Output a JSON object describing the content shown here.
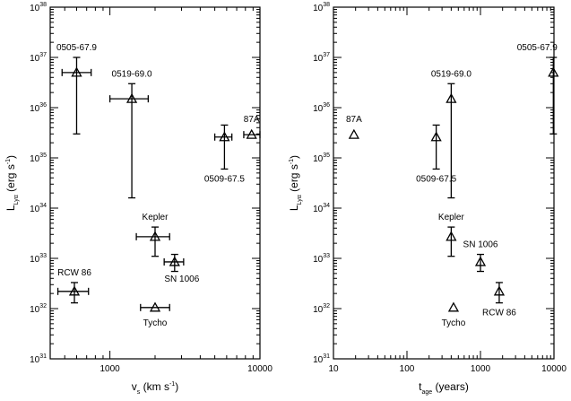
{
  "chart_data": [
    {
      "type": "scatter",
      "xscale": "log",
      "yscale": "log",
      "xlim": [
        400,
        10000
      ],
      "ylim": [
        1e+31,
        1e+38
      ],
      "xlabel": "v_s (km s^-1)",
      "ylabel": "L_Lyα (erg s^-1)",
      "x_ticklabels": [
        "1000",
        "10000"
      ],
      "y_ticklabels": [
        "10^31",
        "10^32",
        "10^33",
        "10^34",
        "10^35",
        "10^36",
        "10^37",
        "10^38"
      ],
      "points": [
        {
          "label": "0505-67.9",
          "x": 600,
          "xerr": [
            480,
            750
          ],
          "y": 5e+36,
          "yerr": [
            3e+35,
            1e+37
          ],
          "label_pos": "above"
        },
        {
          "label": "0519-69.0",
          "x": 1400,
          "xerr": [
            1000,
            1800
          ],
          "y": 1.5e+36,
          "yerr": [
            1.6e+34,
            3e+36
          ],
          "label_pos": "above"
        },
        {
          "label": "0509-67.5",
          "x": 5800,
          "xerr": [
            5000,
            6500
          ],
          "y": 2.6e+35,
          "yerr": [
            6e+34,
            4.5e+35
          ],
          "label_pos": "below"
        },
        {
          "label": "87A",
          "x": 8800,
          "xerr": [
            7800,
            10000
          ],
          "y": 2.9e+35,
          "yerr": null,
          "label_pos": "above"
        },
        {
          "label": "Kepler",
          "x": 2000,
          "xerr": [
            1500,
            2500
          ],
          "y": 2.7e+33,
          "yerr": [
            1.1e+33,
            4.2e+33
          ],
          "label_pos": "above"
        },
        {
          "label": "SN 1006",
          "x": 2700,
          "xerr": [
            2300,
            3100
          ],
          "y": 8.5e+32,
          "yerr": [
            5.5e+32,
            1.2e+33
          ],
          "label_pos": "below-right"
        },
        {
          "label": "RCW 86",
          "x": 580,
          "xerr": [
            450,
            720
          ],
          "y": 2.2e+32,
          "yerr": [
            1.3e+32,
            3.3e+32
          ],
          "label_pos": "above"
        },
        {
          "label": "Tycho",
          "x": 2000,
          "xerr": [
            1600,
            2500
          ],
          "y": 1.05e+32,
          "yerr": null,
          "label_pos": "below"
        }
      ]
    },
    {
      "type": "scatter",
      "xscale": "log",
      "yscale": "log",
      "xlim": [
        10,
        10000
      ],
      "ylim": [
        1e+31,
        1e+38
      ],
      "xlabel": "t_age (years)",
      "ylabel": "L_Lyα (erg s^-1)",
      "x_ticklabels": [
        "10",
        "100",
        "1000",
        "10000"
      ],
      "y_ticklabels": [
        "10^31",
        "10^32",
        "10^33",
        "10^34",
        "10^35",
        "10^36",
        "10^37",
        "10^38"
      ],
      "points": [
        {
          "label": "87A",
          "x": 19,
          "y": 2.9e+35,
          "yerr": null,
          "label_pos": "above"
        },
        {
          "label": "0509-67.5",
          "x": 250,
          "y": 2.6e+35,
          "yerr": [
            6e+34,
            4.5e+35
          ],
          "label_pos": "below"
        },
        {
          "label": "0519-69.0",
          "x": 400,
          "y": 1.5e+36,
          "yerr": [
            1.6e+34,
            3e+36
          ],
          "label_pos": "above"
        },
        {
          "label": "0505-67.9",
          "x": 9800,
          "y": 5e+36,
          "yerr": [
            3e+35,
            1e+37
          ],
          "label_pos": "above-left"
        },
        {
          "label": "Kepler",
          "x": 400,
          "y": 2.7e+33,
          "yerr": [
            1.1e+33,
            4.2e+33
          ],
          "label_pos": "above"
        },
        {
          "label": "SN 1006",
          "x": 1000,
          "y": 8.5e+32,
          "yerr": [
            5.5e+32,
            1.2e+33
          ],
          "label_pos": "above"
        },
        {
          "label": "Tycho",
          "x": 430,
          "y": 1.05e+32,
          "yerr": null,
          "label_pos": "below"
        },
        {
          "label": "RCW 86",
          "x": 1800,
          "y": 2.2e+32,
          "yerr": [
            1.3e+32,
            3.3e+32
          ],
          "label_pos": "below"
        }
      ]
    }
  ]
}
